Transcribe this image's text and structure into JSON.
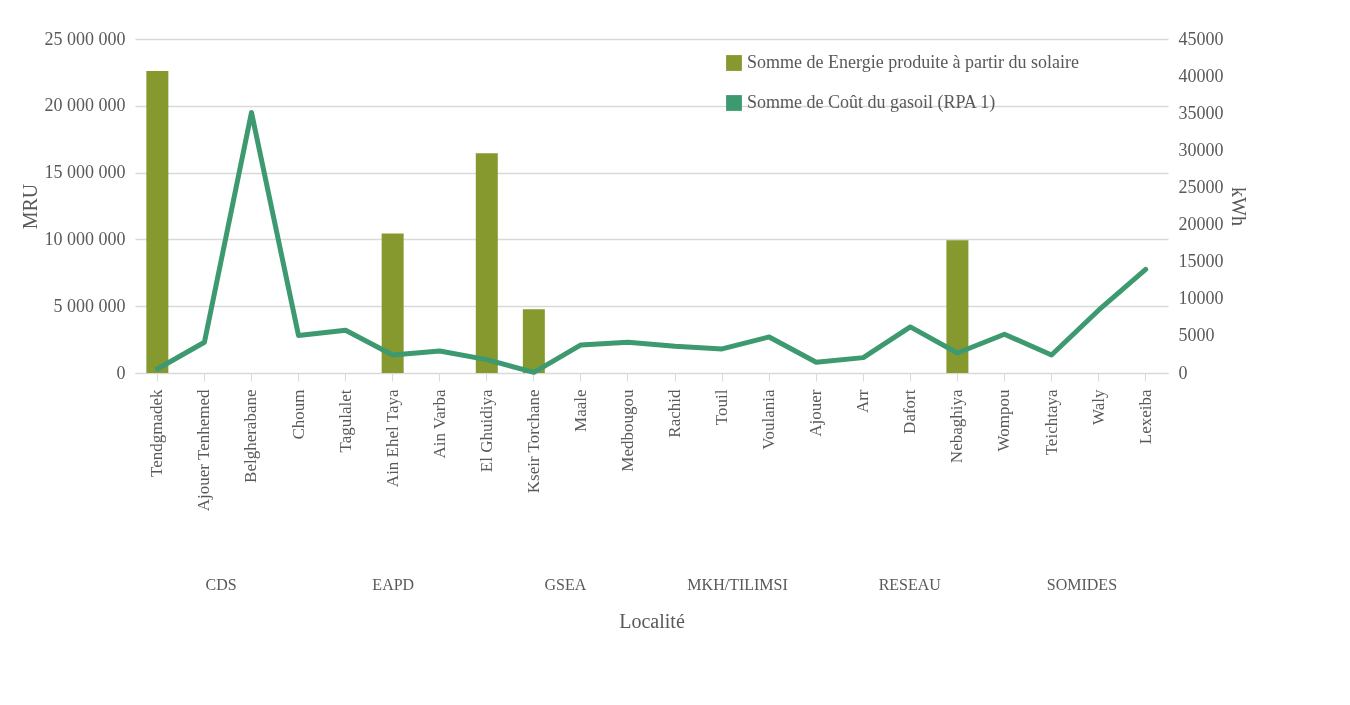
{
  "chart_data": {
    "type": "bar",
    "xlabel": "Localité",
    "ylabel": "MRU",
    "y2label": "kWh",
    "categories": [
      "Tendgmadek",
      "Ajouer Tenhemed",
      "Belgherabane",
      "Choum",
      "Tagulalet",
      "Ain Ehel Taya",
      "Ain Varba",
      "El Ghuidiya",
      "Kseir Torchane",
      "Maale",
      "Medbougou",
      "Rachid",
      "Touil",
      "Voulania",
      "Ajouer",
      "Arr",
      "Dafort",
      "Nebaghiya",
      "Wompou",
      "Teichtaya",
      "Waly",
      "Lexeiba"
    ],
    "series": [
      {
        "name": "Somme de Energie produite à partir du solaire",
        "axis": "y2",
        "color": "#86992e",
        "values": [
          40700,
          null,
          null,
          null,
          null,
          18800,
          null,
          29600,
          8600,
          null,
          null,
          null,
          null,
          null,
          null,
          null,
          null,
          17900,
          null,
          null,
          null,
          null
        ]
      },
      {
        "name": "Somme de Coût du gasoil (RPA 1)",
        "type": "line",
        "color": "#3d9970",
        "values": [
          300000,
          2300000,
          19500000,
          2800000,
          3200000,
          1350000,
          1650000,
          1000000,
          50000,
          2100000,
          2300000,
          2000000,
          1800000,
          2700000,
          800000,
          1150000,
          3450000,
          1500000,
          2900000,
          1350000,
          4700000,
          7750000
        ]
      }
    ],
    "ylim": [
      0,
      25000000
    ],
    "yticks": [
      {
        "value": 0,
        "label": "0"
      },
      {
        "value": 5000000,
        "label": "5 000 000"
      },
      {
        "value": 10000000,
        "label": "10 000 000"
      },
      {
        "value": 15000000,
        "label": "15 000 000"
      },
      {
        "value": 20000000,
        "label": "20 000 000"
      },
      {
        "value": 25000000,
        "label": "25 000 000"
      }
    ],
    "y2lim": [
      0,
      45000
    ],
    "y2ticks": [
      0,
      5000,
      10000,
      15000,
      20000,
      25000,
      30000,
      35000,
      40000,
      45000
    ],
    "grid": "y",
    "legend": "top right",
    "annotations": [
      "CDS",
      "EAPD",
      "GSEA",
      "MKH/TILIMSI",
      "RESEAU",
      "SOMIDES"
    ]
  }
}
